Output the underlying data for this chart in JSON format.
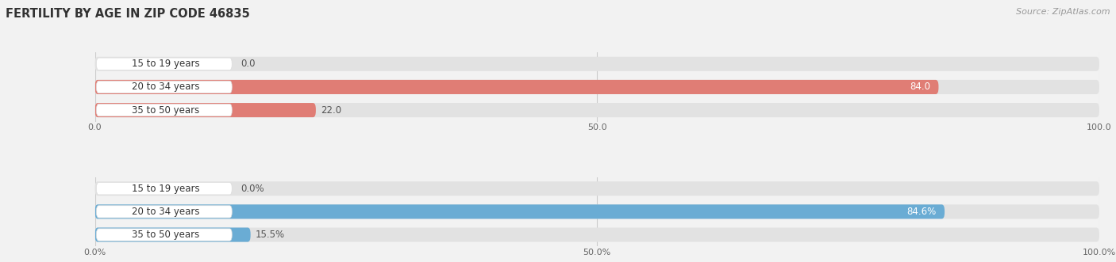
{
  "title": "FERTILITY BY AGE IN ZIP CODE 46835",
  "source": "Source: ZipAtlas.com",
  "top_chart": {
    "categories": [
      "15 to 19 years",
      "20 to 34 years",
      "35 to 50 years"
    ],
    "values": [
      0.0,
      84.0,
      22.0
    ],
    "bar_color": "#E07D75",
    "bar_color_light": "#EBA9A4",
    "xlim": [
      0,
      100
    ],
    "xticks": [
      0.0,
      50.0,
      100.0
    ],
    "xtick_labels": [
      "0.0",
      "50.0",
      "100.0"
    ]
  },
  "bottom_chart": {
    "categories": [
      "15 to 19 years",
      "20 to 34 years",
      "35 to 50 years"
    ],
    "values": [
      0.0,
      84.6,
      15.5
    ],
    "bar_color": "#6AACD4",
    "bar_color_light": "#9EC8E8",
    "xlim": [
      0,
      100
    ],
    "xticks": [
      0.0,
      50.0,
      100.0
    ],
    "xtick_labels": [
      "0.0%",
      "50.0%",
      "100.0%"
    ]
  },
  "top_value_labels": [
    "0.0",
    "84.0",
    "22.0"
  ],
  "bottom_value_labels": [
    "0.0%",
    "84.6%",
    "15.5%"
  ],
  "bg_color": "#f2f2f2",
  "bar_bg_color": "#e2e2e2",
  "bar_height": 0.62,
  "label_fontsize": 8.5,
  "category_fontsize": 8.5,
  "title_fontsize": 10.5,
  "source_fontsize": 8
}
